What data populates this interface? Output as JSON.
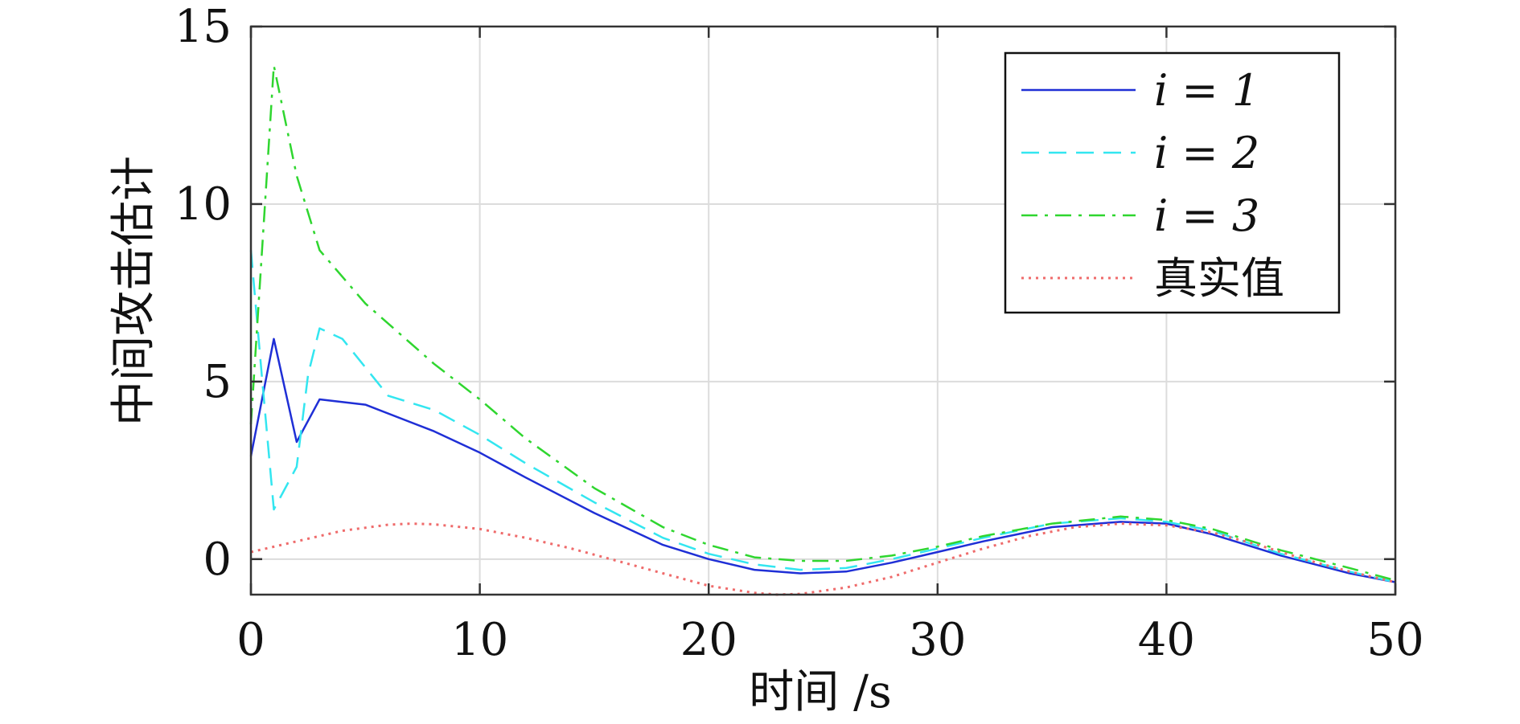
{
  "chart_data": {
    "type": "line",
    "xlabel": "时间 /s",
    "ylabel": "中间攻击估计",
    "xlim": [
      0,
      50
    ],
    "ylim": [
      -1,
      15
    ],
    "xticks": [
      "0",
      "10",
      "20",
      "30",
      "40",
      "50"
    ],
    "yticks": [
      "0",
      "5",
      "10",
      "15"
    ],
    "grid": true,
    "legend_position": "top-right",
    "series": [
      {
        "name": "i = 1",
        "color": "#1f2fd6",
        "style": "solid",
        "x": [
          0,
          1,
          2,
          3,
          5,
          8,
          10,
          12,
          15,
          18,
          20,
          22,
          24,
          26,
          28,
          30,
          32,
          35,
          38,
          40,
          42,
          45,
          48,
          50
        ],
        "y": [
          2.9,
          6.2,
          3.3,
          4.5,
          4.35,
          3.6,
          3.0,
          2.3,
          1.3,
          0.4,
          0.0,
          -0.3,
          -0.4,
          -0.35,
          -0.1,
          0.2,
          0.5,
          0.9,
          1.05,
          1.0,
          0.7,
          0.1,
          -0.4,
          -0.65
        ]
      },
      {
        "name": "i = 2",
        "color": "#33e6f0",
        "style": "dashed",
        "x": [
          0,
          0.5,
          1,
          2,
          2.5,
          3,
          4,
          6,
          8,
          10,
          12,
          15,
          18,
          20,
          22,
          24,
          26,
          28,
          30,
          32,
          35,
          38,
          40,
          42,
          45,
          48,
          50
        ],
        "y": [
          8.7,
          5.0,
          1.4,
          2.6,
          5.2,
          6.5,
          6.2,
          4.6,
          4.2,
          3.5,
          2.7,
          1.6,
          0.6,
          0.15,
          -0.15,
          -0.3,
          -0.25,
          0.0,
          0.3,
          0.6,
          1.0,
          1.15,
          1.05,
          0.8,
          0.15,
          -0.35,
          -0.65
        ]
      },
      {
        "name": "i = 3",
        "color": "#2fd62f",
        "style": "dashdot",
        "x": [
          0,
          1,
          2,
          3,
          5,
          8,
          10,
          12,
          15,
          18,
          20,
          22,
          24,
          26,
          28,
          30,
          32,
          35,
          38,
          40,
          42,
          45,
          48,
          50
        ],
        "y": [
          3.8,
          13.9,
          10.8,
          8.7,
          7.2,
          5.5,
          4.5,
          3.4,
          2.0,
          0.9,
          0.4,
          0.05,
          -0.05,
          -0.05,
          0.1,
          0.35,
          0.65,
          1.0,
          1.2,
          1.1,
          0.85,
          0.25,
          -0.25,
          -0.6
        ]
      },
      {
        "name": "真实值",
        "color": "#ef6b6b",
        "style": "dotted",
        "x": [
          0,
          2,
          4,
          6,
          7,
          8,
          10,
          12,
          14,
          16,
          18,
          20,
          22,
          23,
          24,
          26,
          28,
          30,
          32,
          34,
          36,
          38,
          40,
          42,
          44,
          46,
          48,
          50
        ],
        "y": [
          0.2,
          0.5,
          0.8,
          0.97,
          1.0,
          0.98,
          0.85,
          0.6,
          0.3,
          -0.05,
          -0.4,
          -0.75,
          -0.95,
          -1.0,
          -0.98,
          -0.8,
          -0.5,
          -0.1,
          0.3,
          0.65,
          0.9,
          1.0,
          0.95,
          0.75,
          0.4,
          0.0,
          -0.35,
          -0.65
        ]
      }
    ]
  }
}
